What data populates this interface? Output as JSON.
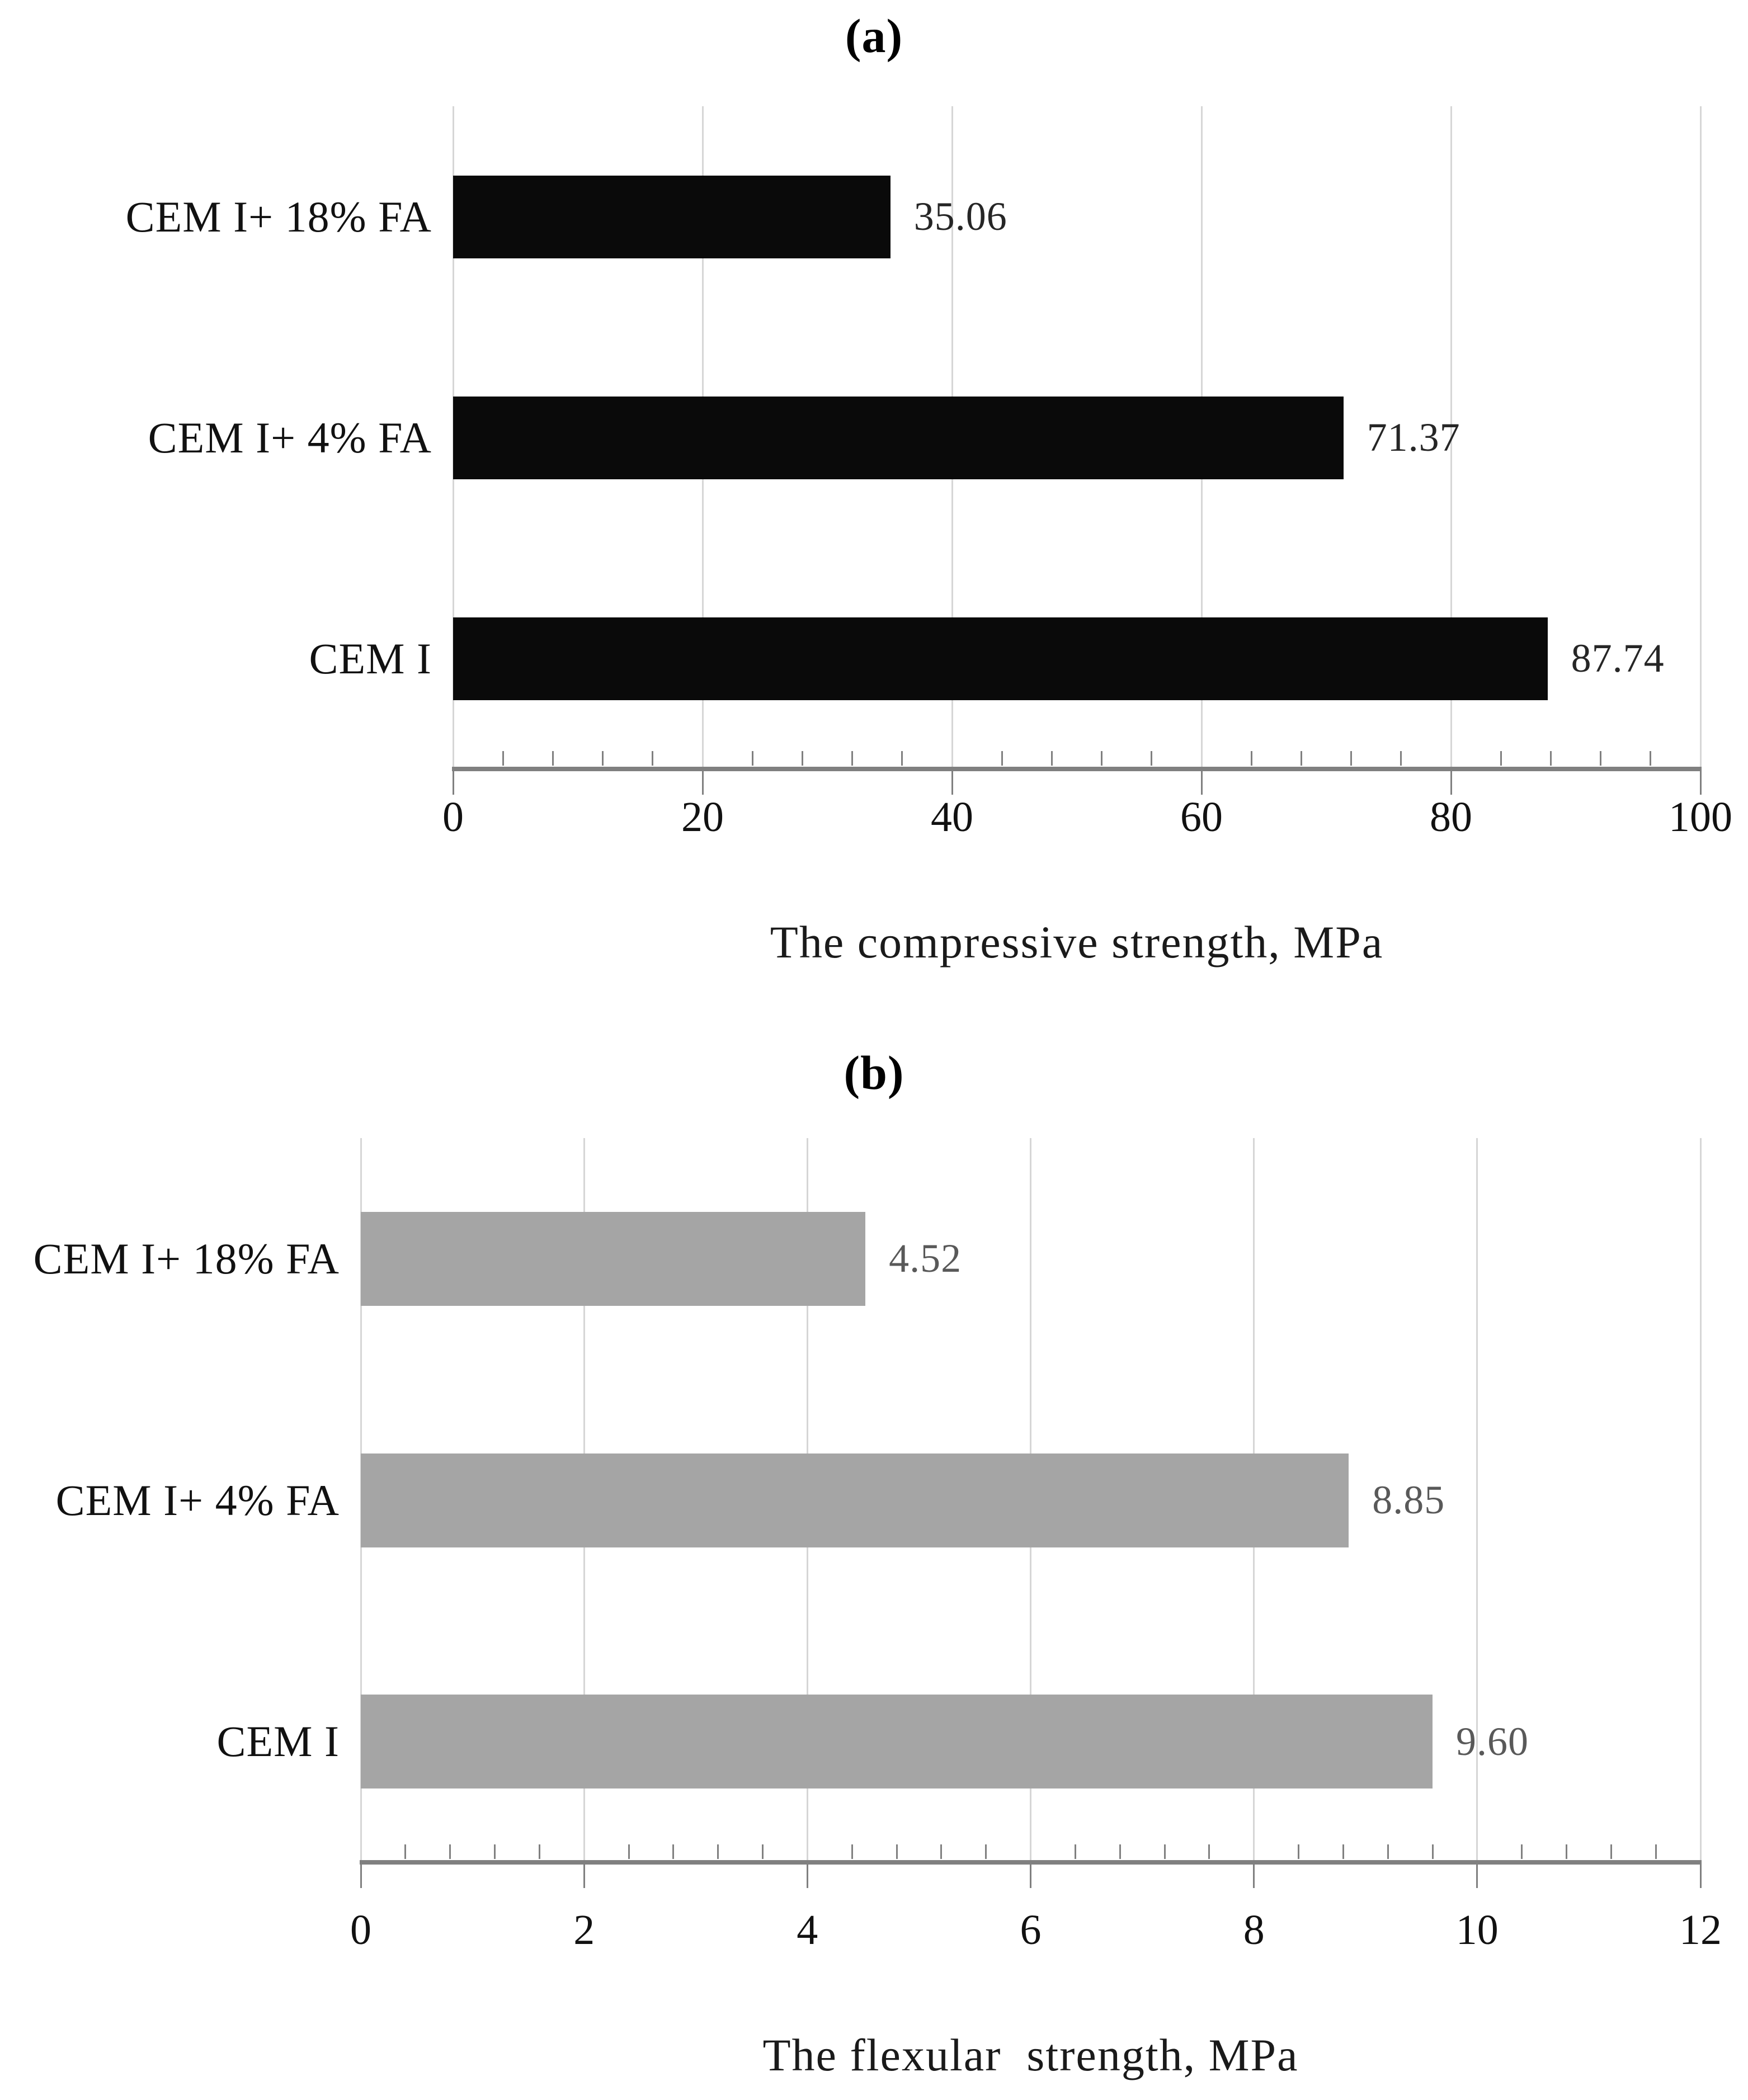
{
  "figure": {
    "background": "#ffffff",
    "text_color": "#1a1a1a"
  },
  "chart_data": [
    {
      "type": "bar",
      "orientation": "horizontal",
      "title": "(a)",
      "xlabel": "The compressive strength, MPa",
      "categories": [
        "CEM I+ 18% FA",
        "CEM I+ 4% FA",
        "CEM I"
      ],
      "values": [
        35.06,
        71.37,
        87.74
      ],
      "value_labels": [
        "35.06",
        "71.37",
        "87.74"
      ],
      "xlim": [
        0,
        100
      ],
      "xticks": [
        0,
        20,
        40,
        60,
        80,
        100
      ],
      "xtick_labels": [
        "0",
        "20",
        "40",
        "60",
        "80",
        "100"
      ],
      "minor_ticks_per_major": 5,
      "grid": true,
      "legend": "none",
      "bar_color": "#0a0a0a",
      "value_label_color": "#262626"
    },
    {
      "type": "bar",
      "orientation": "horizontal",
      "title": "(b)",
      "xlabel": "The flexular  strength, MPa",
      "categories": [
        "CEM I+ 18% FA",
        "CEM I+ 4% FA",
        "CEM I"
      ],
      "values": [
        4.52,
        8.85,
        9.6
      ],
      "value_labels": [
        "4.52",
        "8.85",
        "9.60"
      ],
      "xlim": [
        0,
        12
      ],
      "xticks": [
        0,
        2,
        4,
        6,
        8,
        10,
        12
      ],
      "xtick_labels": [
        "0",
        "2",
        "4",
        "6",
        "8",
        "10",
        "12"
      ],
      "minor_ticks_per_major": 5,
      "grid": true,
      "legend": "none",
      "bar_color": "#a5a5a5",
      "value_label_color": "#595959"
    }
  ],
  "colors": {
    "gridline": "#d6d6d6",
    "axis_line": "#808080",
    "tick_mark": "#808080"
  }
}
